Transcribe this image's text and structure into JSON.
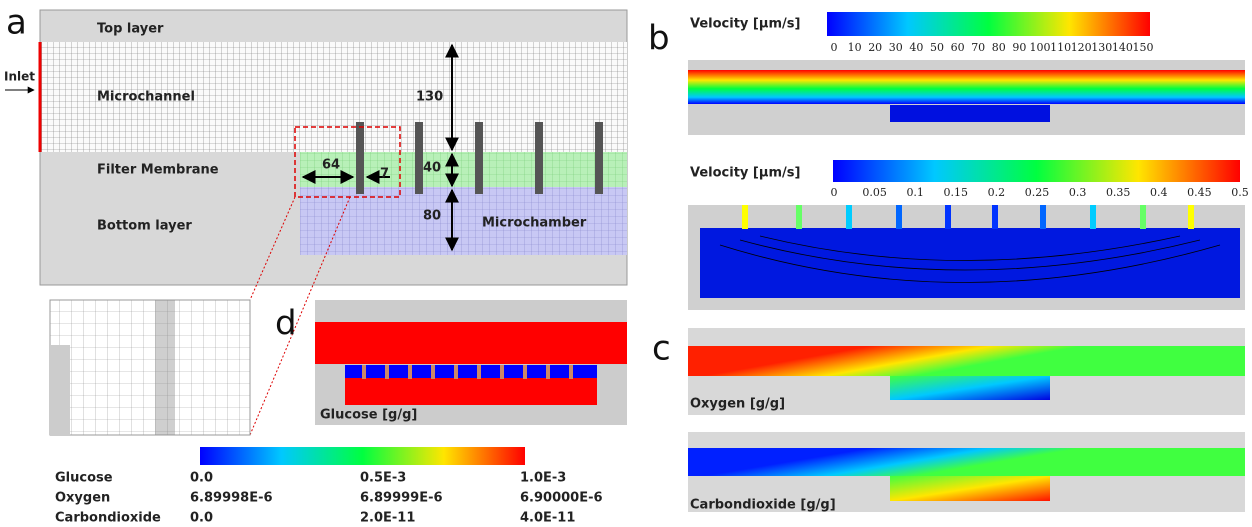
{
  "panel_a": {
    "letter": "a",
    "top_layer": "Top layer",
    "inlet": "Inlet",
    "microchannel": "Microchannel",
    "channel_height": "130",
    "filter_membrane": "Filter Membrane",
    "gap": "64",
    "pore": "7",
    "membrane_height": "40",
    "bottom_layer": "Bottom layer",
    "chamber_height": "80",
    "microchamber": "Microchamber"
  },
  "panel_b": {
    "letter": "b",
    "colorbars": [
      {
        "title": "Velocity [μm/s]",
        "ticks": [
          "0",
          "10",
          "20",
          "30",
          "40",
          "50",
          "60",
          "70",
          "80",
          "90",
          "100",
          "110",
          "120",
          "130",
          "140",
          "150"
        ]
      },
      {
        "title": "Velocity [μm/s]",
        "ticks": [
          "0",
          "0.05",
          "0.1",
          "0.15",
          "0.2",
          "0.25",
          "0.3",
          "0.35",
          "0.4",
          "0.45",
          "0.5"
        ]
      }
    ]
  },
  "panel_c": {
    "letter": "c",
    "oxygen": "Oxygen [g/g]",
    "carbondioxide": "Carbondioxide [g/g]"
  },
  "panel_d": {
    "letter": "d",
    "glucose": "Glucose [g/g]"
  },
  "legend": {
    "rows": [
      [
        "Glucose",
        "0.0",
        "0.5E-3",
        "1.0E-3"
      ],
      [
        "Oxygen",
        "6.89998E-6",
        "6.89999E-6",
        "6.90000E-6"
      ],
      [
        "Carbondioxide",
        "0.0",
        "2.0E-11",
        "4.0E-11"
      ]
    ]
  }
}
